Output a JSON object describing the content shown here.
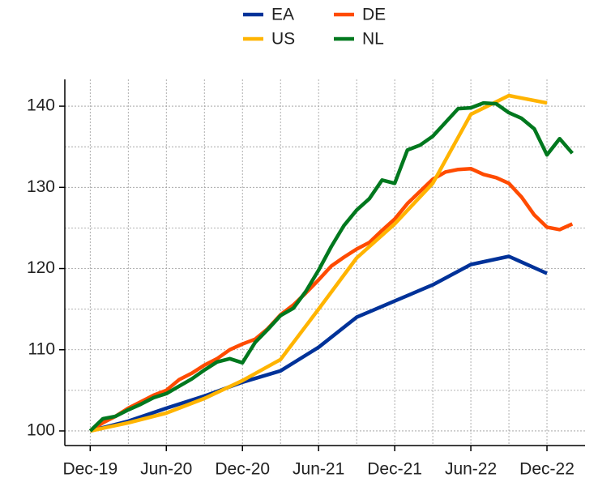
{
  "chart_data": {
    "type": "line",
    "xlim": [
      "2019-10",
      "2023-03"
    ],
    "xticks": [
      {
        "value": "2019-12",
        "label": "Dec-19"
      },
      {
        "value": "2020-06",
        "label": "Jun-20"
      },
      {
        "value": "2020-12",
        "label": "Dec-20"
      },
      {
        "value": "2021-06",
        "label": "Jun-21"
      },
      {
        "value": "2021-12",
        "label": "Dec-21"
      },
      {
        "value": "2022-06",
        "label": "Jun-22"
      },
      {
        "value": "2022-12",
        "label": "Dec-22"
      }
    ],
    "ylim": [
      98.2,
      143.3
    ],
    "yticks": [
      100,
      110,
      120,
      130,
      140
    ],
    "grid": true,
    "legend": "top",
    "series": [
      {
        "name": "EA",
        "color": "#003299",
        "x": [
          "2019-12",
          "2020-03",
          "2020-06",
          "2020-09",
          "2020-12",
          "2021-03",
          "2021-06",
          "2021-09",
          "2021-12",
          "2022-03",
          "2022-06",
          "2022-09",
          "2022-12"
        ],
        "values": [
          100,
          101.2,
          102.8,
          104.3,
          106,
          107.4,
          110.3,
          114,
          116,
          118,
          120.5,
          121.5,
          119.4
        ]
      },
      {
        "name": "DE",
        "color": "#ff4b00",
        "x": [
          "2019-12",
          "2020-01",
          "2020-02",
          "2020-03",
          "2020-04",
          "2020-05",
          "2020-06",
          "2020-07",
          "2020-08",
          "2020-09",
          "2020-10",
          "2020-11",
          "2020-12",
          "2021-01",
          "2021-02",
          "2021-03",
          "2021-04",
          "2021-05",
          "2021-06",
          "2021-07",
          "2021-08",
          "2021-09",
          "2021-10",
          "2021-11",
          "2021-12",
          "2022-01",
          "2022-02",
          "2022-03",
          "2022-04",
          "2022-05",
          "2022-06",
          "2022-07",
          "2022-08",
          "2022-09",
          "2022-10",
          "2022-11",
          "2022-12",
          "2023-01",
          "2023-02"
        ],
        "values": [
          100,
          101,
          101.8,
          102.8,
          103.6,
          104.4,
          105,
          106.3,
          107.1,
          108.1,
          108.9,
          110,
          110.7,
          111.3,
          112.6,
          114.3,
          115.5,
          117,
          118.6,
          120.3,
          121.4,
          122.4,
          123.2,
          124.7,
          126.1,
          128,
          129.5,
          131,
          131.9,
          132.2,
          132.3,
          131.6,
          131.2,
          130.5,
          128.8,
          126.6,
          125.1,
          124.8,
          125.5
        ]
      },
      {
        "name": "US",
        "color": "#ffb400",
        "x": [
          "2019-12",
          "2020-03",
          "2020-06",
          "2020-09",
          "2020-12",
          "2021-03",
          "2021-06",
          "2021-09",
          "2021-12",
          "2022-03",
          "2022-06",
          "2022-09",
          "2022-12"
        ],
        "values": [
          100,
          101,
          102.2,
          104,
          106.2,
          108.8,
          115,
          121.3,
          125.5,
          130.5,
          139,
          141.3,
          140.4
        ]
      },
      {
        "name": "NL",
        "color": "#00781e",
        "x": [
          "2019-12",
          "2020-01",
          "2020-02",
          "2020-03",
          "2020-04",
          "2020-05",
          "2020-06",
          "2020-07",
          "2020-08",
          "2020-09",
          "2020-10",
          "2020-11",
          "2020-12",
          "2021-01",
          "2021-02",
          "2021-03",
          "2021-04",
          "2021-05",
          "2021-06",
          "2021-07",
          "2021-08",
          "2021-09",
          "2021-10",
          "2021-11",
          "2021-12",
          "2022-01",
          "2022-02",
          "2022-03",
          "2022-04",
          "2022-05",
          "2022-06",
          "2022-07",
          "2022-08",
          "2022-09",
          "2022-10",
          "2022-11",
          "2022-12",
          "2023-01",
          "2023-02"
        ],
        "values": [
          100,
          101.5,
          101.8,
          102.6,
          103.3,
          104.1,
          104.6,
          105.5,
          106.4,
          107.5,
          108.5,
          108.9,
          108.4,
          110.9,
          112.5,
          114.2,
          115.1,
          117.2,
          119.8,
          122.7,
          125.3,
          127.2,
          128.6,
          130.9,
          130.5,
          134.6,
          135.2,
          136.3,
          138,
          139.7,
          139.8,
          140.4,
          140.3,
          139.2,
          138.5,
          137.2,
          134,
          136,
          134.2
        ]
      }
    ]
  }
}
